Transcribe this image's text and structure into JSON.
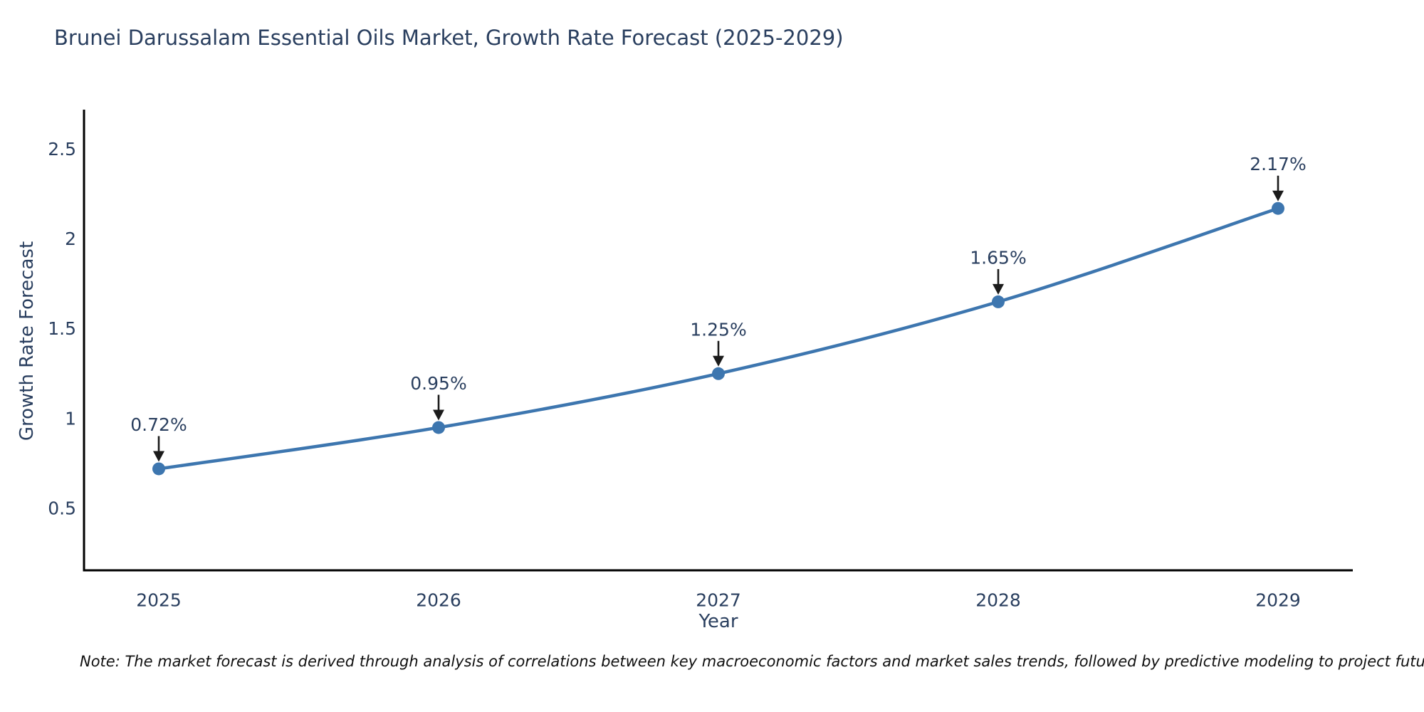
{
  "chart_data": {
    "type": "line",
    "title": "Brunei Darussalam Essential Oils Market, Growth Rate Forecast (2025-2029)",
    "xlabel": "Year",
    "ylabel": "Growth Rate Forecast",
    "categories": [
      "2025",
      "2026",
      "2027",
      "2028",
      "2029"
    ],
    "series": [
      {
        "name": "Growth Rate Forecast",
        "values": [
          0.72,
          0.95,
          1.25,
          1.65,
          2.17
        ],
        "point_labels": [
          "0.72%",
          "0.95%",
          "1.25%",
          "1.65%",
          "2.17%"
        ]
      }
    ],
    "yticks": [
      0.5,
      1,
      1.5,
      2,
      2.5
    ],
    "ytick_labels": [
      "0.5",
      "1",
      "1.5",
      "2",
      "2.5"
    ],
    "ylim": [
      0.155,
      2.72
    ],
    "grid": false,
    "legend_position": "none",
    "line_shape": "spline",
    "colors": {
      "line": "#3d76af",
      "marker": "#3d76af",
      "axis": "#000000",
      "text": "#2a3f5f",
      "annotation_arrow": "#1b1b1b"
    }
  },
  "note": {
    "text": "Note: The market forecast is derived through analysis of correlations between key macroeconomic factors and market sales trends, followed by predictive modeling to project future sales"
  }
}
